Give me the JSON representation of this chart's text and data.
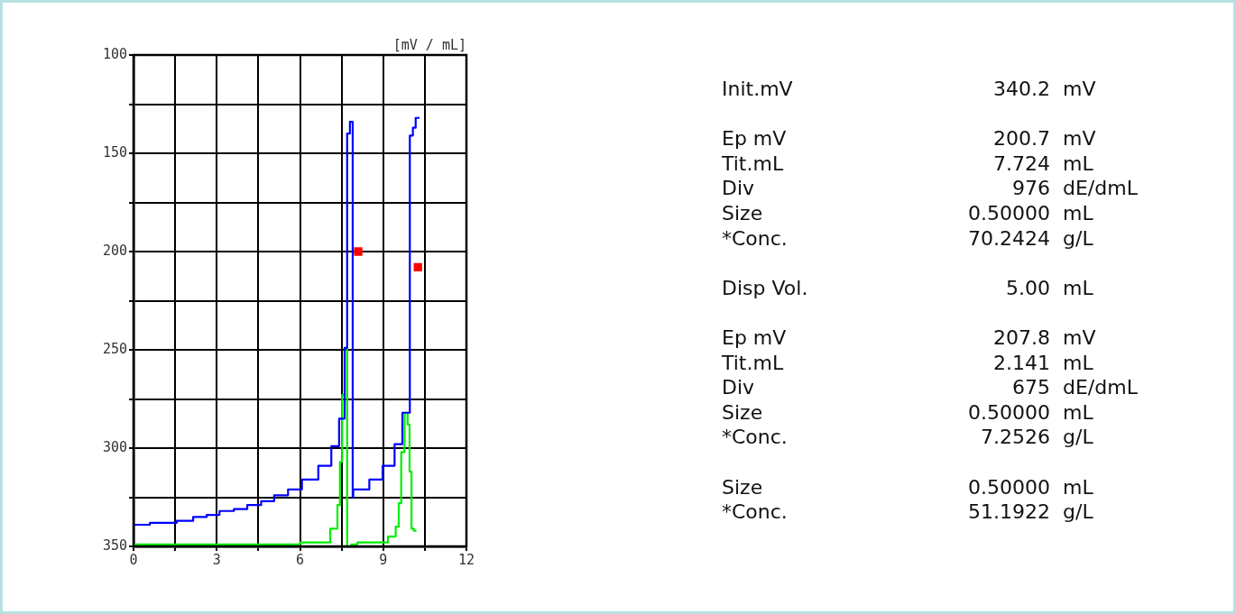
{
  "chart_data": [
    {
      "type": "step",
      "ylabel": "[mV / mL]",
      "xlim": [
        0,
        12
      ],
      "ylim": [
        350,
        100
      ],
      "xticks": [
        0,
        {
          "value": 1.5,
          "label": null
        },
        3,
        {
          "value": 4.5,
          "label": null
        },
        6,
        {
          "value": 7.5,
          "label": null
        },
        9,
        {
          "value": 10.5,
          "label": null
        },
        12
      ],
      "yticks": [
        100,
        {
          "value": 125,
          "label": null
        },
        150,
        {
          "value": 175,
          "label": null
        },
        200,
        {
          "value": 225,
          "label": null
        },
        250,
        {
          "value": 275,
          "label": null
        },
        300,
        {
          "value": 325,
          "label": null
        },
        350
      ],
      "grid": true,
      "marker": "none",
      "line_style": "solid",
      "series": [
        {
          "color": "#0000ff",
          "x": [
            0,
            0.59,
            1.56,
            2.15,
            2.64,
            3.1,
            3.62,
            4.1,
            4.6,
            5.07,
            5.57,
            6.07,
            6.66,
            7.13,
            7.41,
            7.61,
            7.7,
            7.8,
            7.9,
            7.92,
            8.5,
            8.98,
            9.41,
            9.69,
            9.96,
            9.96,
            10.07,
            10.17,
            10.31
          ],
          "values": [
            340,
            339,
            338,
            337,
            335,
            334,
            332,
            331,
            329,
            327,
            324,
            321,
            316,
            309,
            299,
            285,
            249,
            140,
            134,
            325,
            321,
            316,
            309,
            298,
            282,
            155,
            141,
            137,
            132
          ]
        },
        {
          "color": "#00ee00",
          "x": [
            0,
            6.0,
            7.09,
            7.35,
            7.44,
            7.52,
            7.61,
            7.7,
            7.85,
            8.07,
            9.17,
            9.45,
            9.56,
            9.65,
            9.77,
            9.88,
            9.95,
            10.02,
            10.1,
            10.2
          ],
          "values": [
            350,
            349,
            348,
            341,
            329,
            307,
            273,
            249,
            350,
            349,
            348,
            345,
            340,
            328,
            302,
            282,
            288,
            312,
            341,
            342
          ]
        },
        {
          "type": "scatter",
          "marker": "square",
          "color": "#ff0000",
          "x": [
            8.1,
            10.25
          ],
          "values": [
            200,
            208
          ]
        }
      ]
    },
    {
      "type": "other",
      "annotations": [
        "Init.mV",
        "340.2",
        "mV"
      ]
    },
    {
      "type": "other",
      "annotations": [
        "Ep mV",
        "200.7",
        "mV",
        "Tit.mL",
        "7.724",
        "mL",
        "Div",
        "976",
        "dE/dmL",
        "Size",
        "0.50000",
        "mL",
        "*Conc.",
        "70.2424",
        "g/L"
      ]
    },
    {
      "type": "other",
      "annotations": [
        "Disp Vol.",
        "5.00",
        "mL"
      ]
    },
    {
      "type": "other",
      "annotations": [
        "Ep mV",
        "207.8",
        "mV",
        "Tit.mL",
        "2.141",
        "mL",
        "Div",
        "675",
        "dE/dmL",
        "Size",
        "0.50000",
        "mL",
        "*Conc.",
        "7.2526",
        "g/L"
      ]
    },
    {
      "type": "other",
      "annotations": [
        "Size",
        "0.50000",
        "mL",
        "*Conc.",
        "51.1922",
        "g/L"
      ]
    }
  ]
}
